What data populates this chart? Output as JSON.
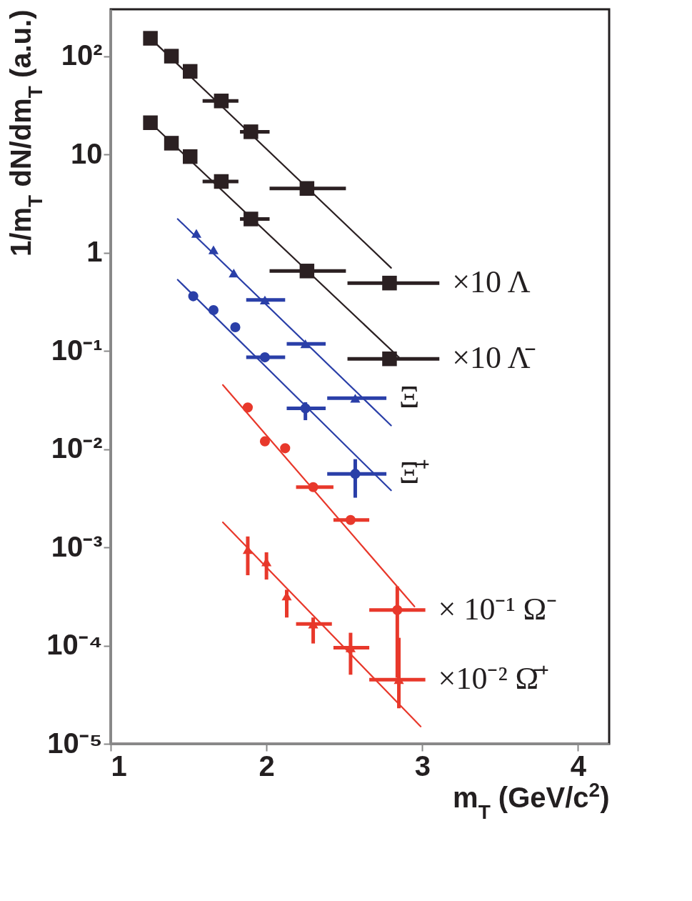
{
  "chart_data": {
    "type": "scatter",
    "xlabel": "m$_{T}$ (GeV/c$^{2}$)",
    "ylabel": "1/m$_{T}$ dN/dm$_{T}$ (a.u.)",
    "xlim": [
      1,
      4.2
    ],
    "xticks": [
      1,
      2,
      3,
      4
    ],
    "ylim": [
      1e-05,
      300
    ],
    "log": true,
    "yticks": [
      {
        "value": 100,
        "label": "10²"
      },
      10,
      1,
      {
        "value": 0.1,
        "label": "10⁻¹"
      },
      {
        "value": 0.01,
        "label": "10⁻²"
      },
      {
        "value": 0.001,
        "label": "10⁻³"
      },
      {
        "value": 0.0001,
        "label": "10⁻⁴"
      },
      {
        "value": 1e-05,
        "label": "10⁻⁵"
      }
    ],
    "series": [
      {
        "type": "line",
        "color": "#2b2022",
        "x": [
          1.255,
          2.8
        ],
        "values": [
          152,
          0.7
        ]
      },
      {
        "type": "line",
        "color": "#2b2022",
        "x": [
          1.255,
          2.85
        ],
        "values": [
          21,
          0.086
        ]
      },
      {
        "type": "line",
        "color": "#2a3fa8",
        "x": [
          1.43,
          2.8
        ],
        "values": [
          2.2,
          0.0174
        ]
      },
      {
        "type": "line",
        "color": "#2a3fa8",
        "x": [
          1.43,
          2.8
        ],
        "values": [
          0.53,
          0.0038
        ]
      },
      {
        "type": "line",
        "color": "#e8382b",
        "x": [
          1.72,
          2.95
        ],
        "values": [
          0.045,
          0.00025
        ]
      },
      {
        "type": "line",
        "color": "#e8382b",
        "x": [
          1.72,
          2.99
        ],
        "values": [
          0.0018,
          1.5e-05
        ]
      },
      {
        "name": "×10 Λ",
        "color": "#2b2022",
        "marker": "square",
        "x": [
          1.255,
          1.39,
          1.51,
          1.71,
          1.9,
          2.26,
          2.79
        ],
        "values": [
          152,
          100,
          70,
          35,
          17,
          4.5,
          0.49
        ],
        "xerrors": [
          null,
          null,
          null,
          [
            1.59,
            1.82
          ],
          [
            1.83,
            2.02
          ],
          [
            2.02,
            2.51
          ],
          [
            2.52,
            3.11
          ]
        ]
      },
      {
        "name": "×10 Λ̄",
        "color": "#2b2022",
        "marker": "square",
        "x": [
          1.255,
          1.39,
          1.51,
          1.71,
          1.9,
          2.26,
          2.79
        ],
        "values": [
          21,
          13,
          9.5,
          5.3,
          2.2,
          0.65,
          0.083
        ],
        "xerrors": [
          null,
          null,
          null,
          [
            1.59,
            1.82
          ],
          [
            1.83,
            2.02
          ],
          [
            2.02,
            2.51
          ],
          [
            2.52,
            3.11
          ]
        ]
      },
      {
        "name": "Ξ",
        "color": "#2a3fa8",
        "marker": "triangle",
        "x": [
          1.55,
          1.66,
          1.79,
          1.99,
          2.25,
          2.57
        ],
        "values": [
          1.57,
          1.07,
          0.62,
          0.33,
          0.118,
          0.033
        ],
        "xerrors": [
          null,
          null,
          null,
          [
            1.87,
            2.12
          ],
          [
            2.13,
            2.38
          ],
          [
            2.39,
            2.77
          ]
        ]
      },
      {
        "name": "Ξ̄⁺",
        "color": "#2a3fa8",
        "marker": "circle",
        "x": [
          1.53,
          1.66,
          1.8,
          1.99,
          2.25,
          2.57
        ],
        "values": [
          0.36,
          0.26,
          0.174,
          0.086,
          0.026,
          0.0056
        ],
        "xerrors": [
          null,
          null,
          null,
          [
            1.87,
            2.12
          ],
          [
            2.13,
            2.38
          ],
          [
            2.39,
            2.77
          ]
        ],
        "errors": [
          null,
          null,
          null,
          null,
          [
            0.0197,
            0.03
          ],
          [
            0.0032,
            0.0079
          ]
        ]
      },
      {
        "name": "× 10⁻¹ Ω⁻",
        "color": "#e8382b",
        "marker": "circle",
        "x": [
          1.88,
          1.99,
          2.12,
          2.3,
          2.54,
          2.84
        ],
        "values": [
          0.0265,
          0.012,
          0.0102,
          0.0041,
          0.0019,
          0.00023
        ],
        "xerrors": [
          null,
          null,
          null,
          [
            2.19,
            2.43
          ],
          [
            2.43,
            2.66
          ],
          [
            2.66,
            3.02
          ]
        ],
        "errors": [
          null,
          null,
          null,
          null,
          null,
          [
            4.7e-05,
            0.0004
          ]
        ]
      },
      {
        "name": "×10⁻² Ω̄⁺",
        "color": "#e8382b",
        "marker": "triangle",
        "x": [
          1.88,
          2.0,
          2.13,
          2.3,
          2.54,
          2.85
        ],
        "values": [
          0.00095,
          0.00071,
          0.00032,
          0.000166,
          9.5e-05,
          4.5e-05
        ],
        "xerrors": [
          null,
          null,
          null,
          [
            2.19,
            2.42
          ],
          [
            2.43,
            2.66
          ],
          [
            2.66,
            3.02
          ]
        ],
        "errors": [
          [
            0.00052,
            0.00129
          ],
          [
            0.00047,
            0.00089
          ],
          [
            0.000193,
            0.00037
          ],
          [
            0.000105,
            0.000193
          ],
          [
            5.05e-05,
            0.000135
          ],
          [
            2.3e-05,
            0.00012
          ]
        ]
      }
    ]
  }
}
